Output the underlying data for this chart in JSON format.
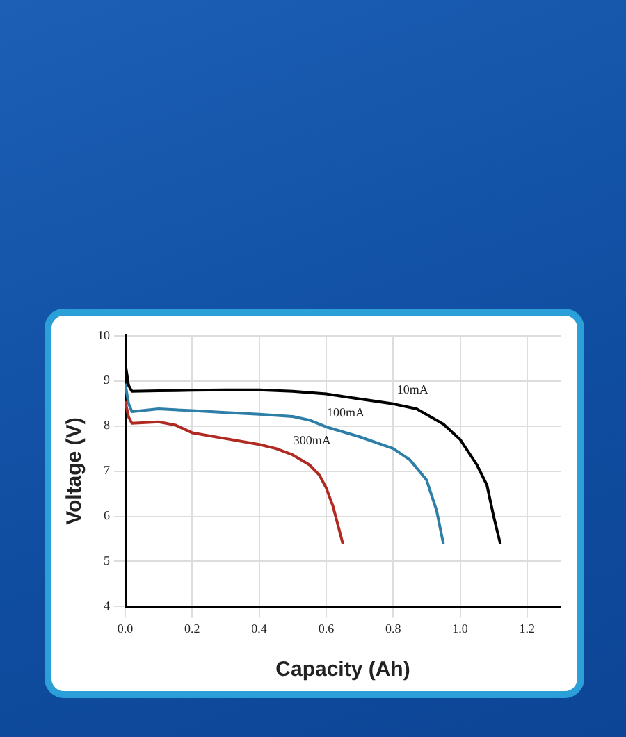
{
  "chart_data": {
    "type": "line",
    "xlabel": "Capacity (Ah)",
    "ylabel": "Voltage (V)",
    "xlim": [
      0,
      1.3
    ],
    "xticks": [
      {
        "value": 0,
        "label": "0.0"
      },
      0.2,
      0.4,
      0.6,
      0.8,
      {
        "value": 1,
        "label": "1.0"
      },
      1.2
    ],
    "ylim": [
      4,
      10
    ],
    "yticks": [
      4,
      5,
      6,
      7,
      8,
      9,
      10
    ],
    "grid": true,
    "legend": false,
    "marker": "none",
    "line_style": "solid",
    "series": [
      {
        "name": "10mA",
        "color": "#000000",
        "x": [
          0,
          0.01,
          0.02,
          0.1,
          0.2,
          0.3,
          0.4,
          0.5,
          0.6,
          0.7,
          0.8,
          0.87,
          0.95,
          1.0,
          1.05,
          1.08,
          1.1,
          1.12
        ],
        "values": [
          9.4,
          8.9,
          8.77,
          8.78,
          8.79,
          8.8,
          8.8,
          8.77,
          8.71,
          8.6,
          8.49,
          8.38,
          8.04,
          7.7,
          7.14,
          6.69,
          6.0,
          5.39
        ]
      },
      {
        "name": "100mA",
        "color": "#2e7fa8",
        "x": [
          0,
          0.01,
          0.02,
          0.1,
          0.2,
          0.3,
          0.4,
          0.5,
          0.55,
          0.6,
          0.7,
          0.8,
          0.85,
          0.9,
          0.93,
          0.95
        ],
        "values": [
          8.94,
          8.5,
          8.32,
          8.38,
          8.34,
          8.3,
          8.26,
          8.21,
          8.13,
          7.98,
          7.76,
          7.5,
          7.25,
          6.8,
          6.12,
          5.39
        ]
      },
      {
        "name": "300mA",
        "color": "#b02a22",
        "x": [
          0,
          0.01,
          0.02,
          0.1,
          0.15,
          0.2,
          0.3,
          0.4,
          0.45,
          0.5,
          0.55,
          0.58,
          0.6,
          0.62,
          0.65
        ],
        "values": [
          8.55,
          8.2,
          8.06,
          8.09,
          8.02,
          7.85,
          7.72,
          7.59,
          7.5,
          7.36,
          7.14,
          6.91,
          6.63,
          6.23,
          5.39
        ]
      }
    ]
  }
}
